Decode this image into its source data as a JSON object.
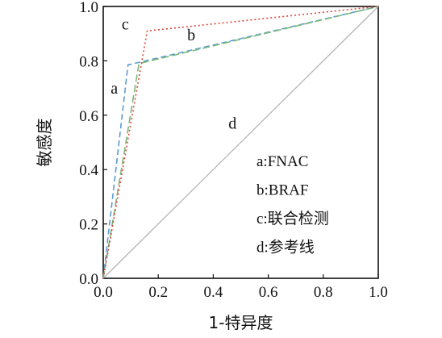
{
  "chart_data": {
    "type": "line",
    "xlabel": "1-特异度",
    "ylabel": "敏感度",
    "xlim": [
      0,
      1
    ],
    "ylim": [
      0,
      1
    ],
    "x_ticks": [
      "0.0",
      "0.2",
      "0.4",
      "0.6",
      "0.8",
      "1.0"
    ],
    "y_ticks": [
      "0.0",
      "0.2",
      "0.4",
      "0.6",
      "0.8",
      "1.0"
    ],
    "grid": false,
    "legend_position": "bottom-right",
    "series": [
      {
        "key": "a",
        "name": "a:FNAC",
        "color": "#5a9bd5",
        "dash": "7 4",
        "x": [
          0,
          0.09,
          1
        ],
        "y": [
          0,
          0.785,
          1
        ]
      },
      {
        "key": "b",
        "name": "b:BRAF",
        "color": "#7ab87a",
        "dash": "9 4",
        "x": [
          0,
          0.13,
          1
        ],
        "y": [
          0,
          0.79,
          1
        ]
      },
      {
        "key": "c",
        "name": "c:联合检测",
        "color": "#e0443a",
        "dash": "2 3",
        "x": [
          0,
          0.16,
          1
        ],
        "y": [
          0,
          0.91,
          1
        ]
      },
      {
        "key": "d",
        "name": "d:参考线",
        "color": "#b5b5b5",
        "dash": "",
        "x": [
          0,
          1
        ],
        "y": [
          0,
          1
        ]
      }
    ],
    "annotations": [
      {
        "text": "a",
        "x": 0.04,
        "y": 0.68
      },
      {
        "text": "b",
        "x": 0.32,
        "y": 0.875
      },
      {
        "text": "c",
        "x": 0.08,
        "y": 0.915
      },
      {
        "text": "d",
        "x": 0.47,
        "y": 0.55
      }
    ]
  }
}
